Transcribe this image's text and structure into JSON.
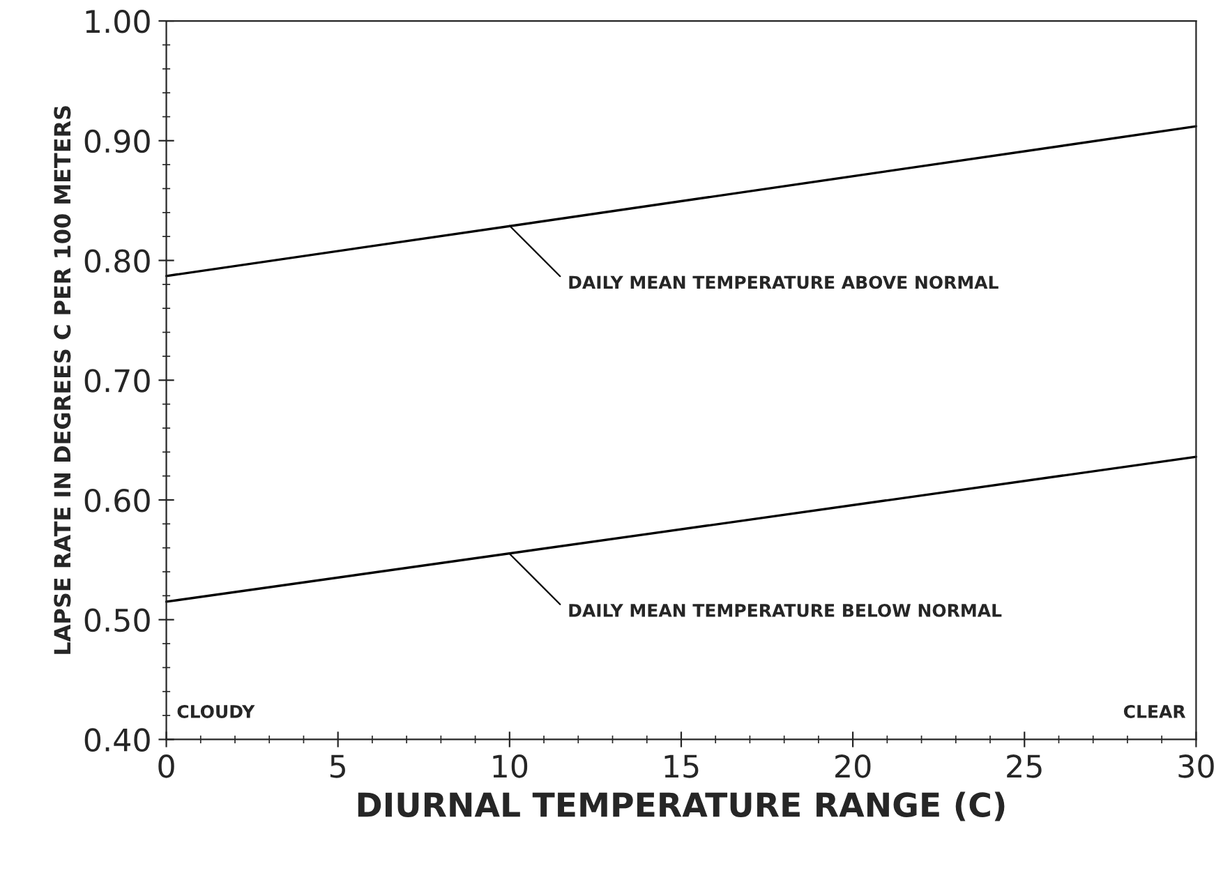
{
  "chart_data": {
    "type": "line",
    "xlabel": "DIURNAL TEMPERATURE RANGE (C)",
    "ylabel": "LAPSE RATE IN DEGREES C PER 100 METERS",
    "series": [
      {
        "color": "#000000",
        "values": [
          0.787,
          0.912
        ]
      },
      {
        "color": "#000000",
        "values": [
          0.515,
          0.636
        ]
      }
    ],
    "x": [
      0,
      30
    ],
    "xlim": [
      0,
      30
    ],
    "ylim": [
      0.4,
      1.0
    ],
    "xticks": [
      0,
      5,
      10,
      15,
      20,
      25,
      30
    ],
    "yticks": [
      {
        "value": 0.4,
        "label": "0.40"
      },
      {
        "value": 0.5,
        "label": "0.50"
      },
      {
        "value": 0.6,
        "label": "0.60"
      },
      {
        "value": 0.7,
        "label": "0.70"
      },
      {
        "value": 0.8,
        "label": "0.80"
      },
      {
        "value": 0.9,
        "label": "0.90"
      },
      {
        "value": 1.0,
        "label": "1.00"
      }
    ],
    "grid": false,
    "legend": false,
    "marker": "none",
    "line_style": "solid",
    "annotations": [
      {
        "text": "DAILY MEAN TEMPERATURE ABOVE NORMAL",
        "x": 10,
        "y": 0.829
      },
      {
        "text": "DAILY MEAN TEMPERATURE BELOW NORMAL",
        "x": 10,
        "y": 0.555
      },
      "CLOUDY",
      "CLEAR"
    ]
  }
}
